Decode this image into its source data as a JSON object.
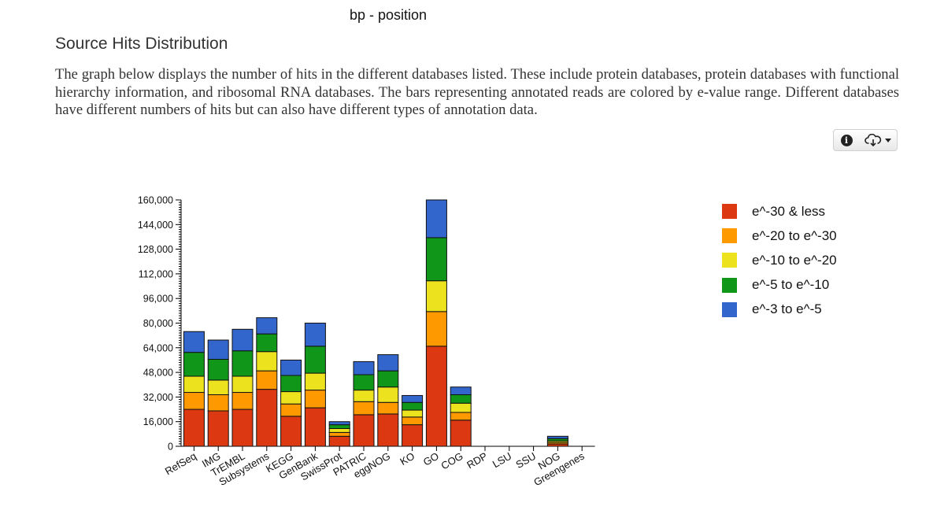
{
  "header": {
    "axis_caption": "bp - position",
    "title": "Source Hits Distribution",
    "description": "The graph below displays the number of hits in the different databases listed. These include protein databases, protein databases with functional hierarchy information, and ribosomal RNA databases. The bars representing annotated reads are colored by e-value range. Different databases have different numbers of hits but can also have different types of annotation data."
  },
  "toolbar": {
    "info_icon": "info-icon",
    "download_icon": "cloud-download-icon"
  },
  "chart_data": {
    "type": "bar",
    "stacked": true,
    "title": "",
    "xlabel": "",
    "ylabel": "",
    "ylim": [
      0,
      160000
    ],
    "yticks": [
      0,
      16000,
      32000,
      48000,
      64000,
      80000,
      96000,
      112000,
      128000,
      144000,
      160000
    ],
    "ytick_labels": [
      "0",
      "16,000",
      "32,000",
      "48,000",
      "64,000",
      "80,000",
      "96,000",
      "112,000",
      "128,000",
      "144,000",
      "160,000"
    ],
    "legend_position": "right",
    "categories": [
      "RefSeq",
      "IMG",
      "TrEMBL",
      "Subsystems",
      "KEGG",
      "GenBank",
      "SwissProt",
      "PATRIC",
      "eggNOG",
      "KO",
      "GO",
      "COG",
      "RDP",
      "LSU",
      "SSU",
      "NOG",
      "Greengenes"
    ],
    "series": [
      {
        "name": "e^-30 & less",
        "color": "#dc3912",
        "values": [
          24000,
          23000,
          24000,
          37000,
          19500,
          25000,
          6500,
          20500,
          21000,
          14000,
          65000,
          17000,
          0,
          0,
          0,
          1500,
          0
        ]
      },
      {
        "name": "e^-20 to e^-30",
        "color": "#ff9900",
        "values": [
          11000,
          10500,
          11000,
          12000,
          8000,
          11500,
          2500,
          8500,
          7500,
          5000,
          22500,
          5000,
          0,
          0,
          0,
          1000,
          0
        ]
      },
      {
        "name": "e^-10 to e^-20",
        "color": "#ede21e",
        "values": [
          10500,
          9500,
          10500,
          12500,
          8000,
          11000,
          2500,
          7500,
          10000,
          4500,
          20000,
          6000,
          0,
          0,
          0,
          1000,
          0
        ]
      },
      {
        "name": "e^-5 to e^-10",
        "color": "#109618",
        "values": [
          15500,
          13500,
          16500,
          11500,
          10500,
          17500,
          2500,
          10000,
          10500,
          5000,
          28000,
          5500,
          0,
          0,
          0,
          1500,
          0
        ]
      },
      {
        "name": "e^-3 to e^-5",
        "color": "#3366cc",
        "values": [
          13500,
          12500,
          14000,
          10500,
          10000,
          15000,
          2000,
          8500,
          10500,
          4500,
          24500,
          5000,
          0,
          0,
          0,
          1500,
          0
        ]
      }
    ]
  }
}
